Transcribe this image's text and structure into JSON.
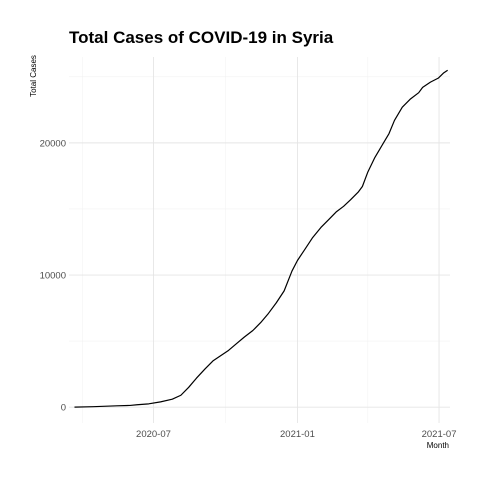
{
  "chart_data": {
    "type": "line",
    "title": "Total Cases of COVID-19 in Syria",
    "xlabel": "Month",
    "ylabel": "Total Cases",
    "grid": true,
    "legend": "none",
    "xlim": [
      "2020-03-15",
      "2021-07-15"
    ],
    "ylim": [
      -1200,
      26500
    ],
    "x_ticks": [
      {
        "value": "2020-07-01",
        "label": "2020-07"
      },
      {
        "value": "2021-01-01",
        "label": "2021-01"
      },
      {
        "value": "2021-07-01",
        "label": "2021-07"
      }
    ],
    "x_minor_ticks": [
      "2020-04-01",
      "2020-10-01",
      "2021-04-01"
    ],
    "y_ticks": [
      {
        "value": 0,
        "label": "0"
      },
      {
        "value": 10000,
        "label": "10000"
      },
      {
        "value": 20000,
        "label": "20000"
      }
    ],
    "y_minor_ticks": [
      5000,
      15000,
      25000
    ],
    "series": [
      {
        "color": "#000000",
        "points": [
          [
            "2020-03-22",
            0
          ],
          [
            "2020-04-15",
            35
          ],
          [
            "2020-05-15",
            100
          ],
          [
            "2020-06-01",
            130
          ],
          [
            "2020-06-10",
            180
          ],
          [
            "2020-06-25",
            250
          ],
          [
            "2020-07-10",
            400
          ],
          [
            "2020-07-25",
            600
          ],
          [
            "2020-08-05",
            900
          ],
          [
            "2020-08-15",
            1500
          ],
          [
            "2020-08-25",
            2200
          ],
          [
            "2020-09-05",
            2900
          ],
          [
            "2020-09-15",
            3500
          ],
          [
            "2020-09-25",
            3900
          ],
          [
            "2020-10-05",
            4300
          ],
          [
            "2020-10-15",
            4800
          ],
          [
            "2020-10-25",
            5300
          ],
          [
            "2020-11-05",
            5800
          ],
          [
            "2020-11-15",
            6400
          ],
          [
            "2020-11-25",
            7100
          ],
          [
            "2020-12-05",
            7900
          ],
          [
            "2020-12-15",
            8800
          ],
          [
            "2020-12-25",
            10300
          ],
          [
            "2021-01-01",
            11100
          ],
          [
            "2021-01-10",
            11900
          ],
          [
            "2021-01-20",
            12800
          ],
          [
            "2021-01-31",
            13600
          ],
          [
            "2021-02-10",
            14200
          ],
          [
            "2021-02-20",
            14800
          ],
          [
            "2021-03-01",
            15200
          ],
          [
            "2021-03-10",
            15700
          ],
          [
            "2021-03-20",
            16300
          ],
          [
            "2021-03-25",
            16700
          ],
          [
            "2021-04-01",
            17800
          ],
          [
            "2021-04-10",
            18900
          ],
          [
            "2021-04-20",
            19900
          ],
          [
            "2021-04-28",
            20700
          ],
          [
            "2021-05-05",
            21700
          ],
          [
            "2021-05-15",
            22700
          ],
          [
            "2021-05-25",
            23300
          ],
          [
            "2021-06-05",
            23800
          ],
          [
            "2021-06-10",
            24200
          ],
          [
            "2021-06-20",
            24600
          ],
          [
            "2021-06-30",
            24900
          ],
          [
            "2021-07-07",
            25300
          ],
          [
            "2021-07-12",
            25500
          ]
        ]
      }
    ]
  }
}
